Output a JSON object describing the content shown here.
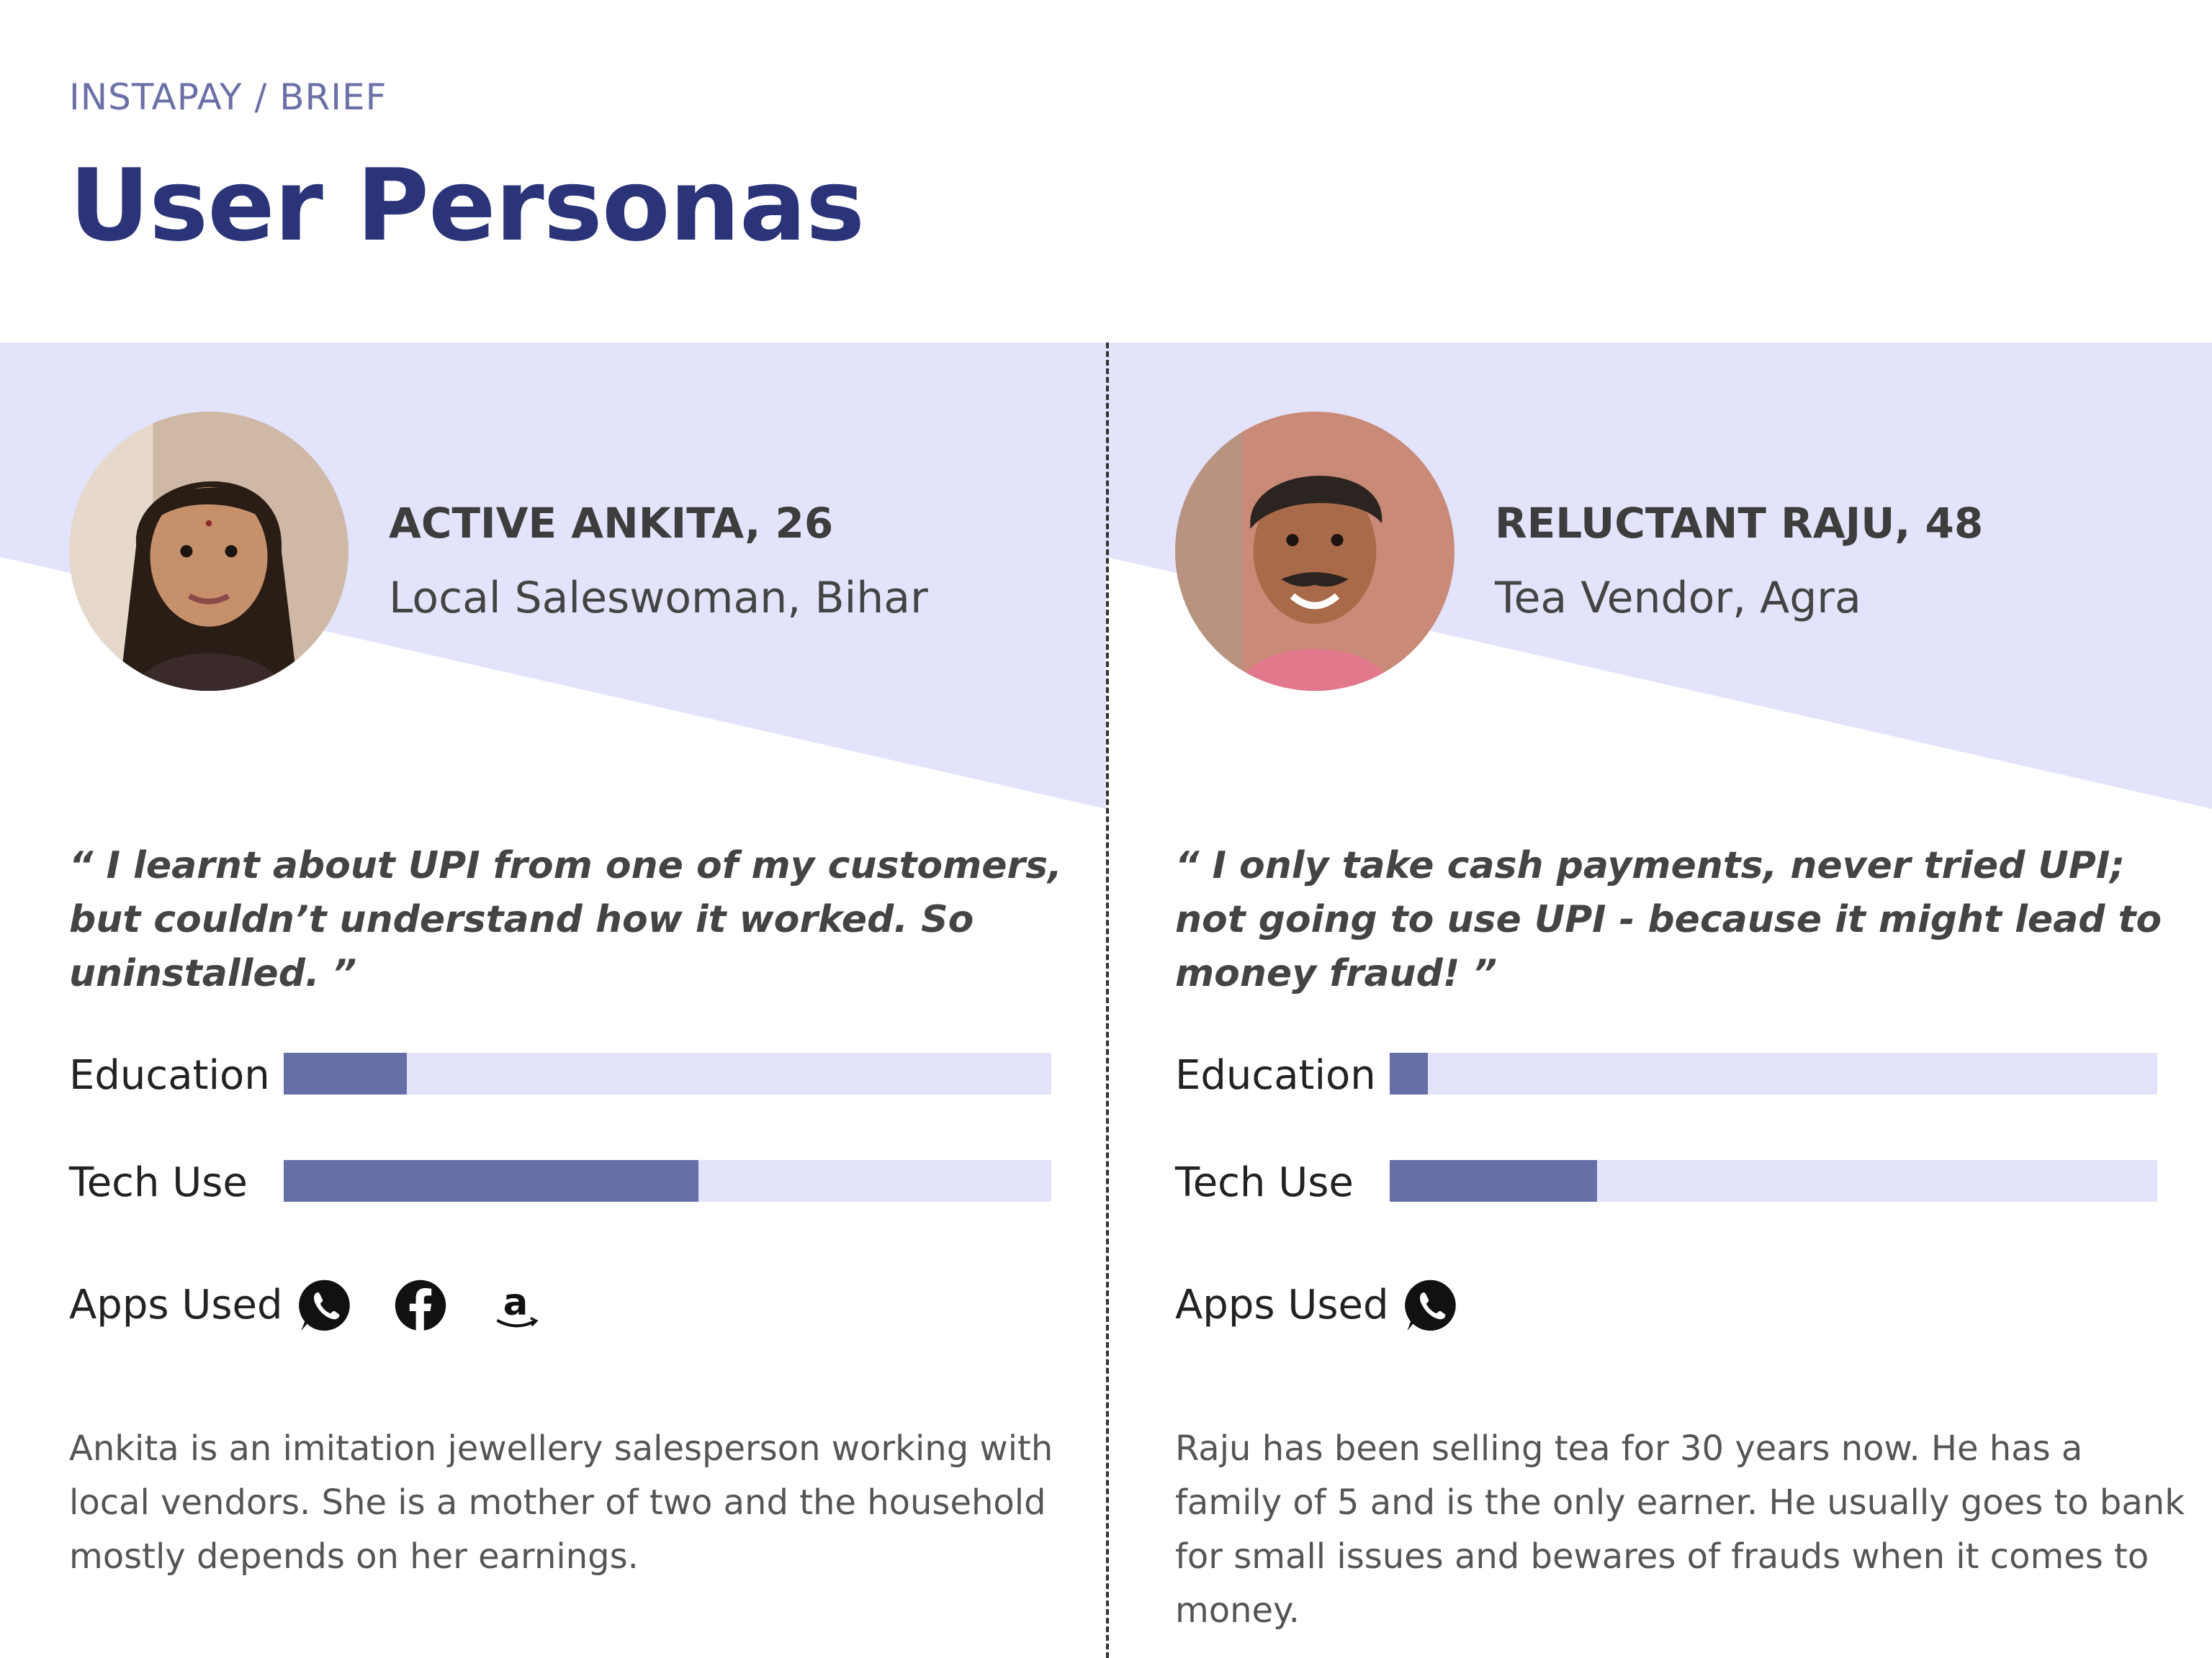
{
  "header": {
    "breadcrumb": "INSTAPAY / BRIEF",
    "title": "User Personas"
  },
  "colors": {
    "title": "#2b3478",
    "band": "#e3e4fc",
    "bar_fill": "#6670a6",
    "bar_track": "#e3e4fc"
  },
  "personas": [
    {
      "name": "ACTIVE ANKITA, 26",
      "role": "Local Saleswoman, Bihar",
      "quote": "“ I learnt about UPI from one of my customers, but couldn’t understand how it worked. So uninstalled. ”",
      "meters": [
        {
          "label": "Education",
          "value": 0.16
        },
        {
          "label": "Tech Use",
          "value": 0.54
        }
      ],
      "apps_label": "Apps Used",
      "apps": [
        "whatsapp-icon",
        "facebook-icon",
        "amazon-icon"
      ],
      "description": "Ankita is an imitation jewellery salesperson working with local vendors. She is a mother of two and the household mostly depends on her earnings."
    },
    {
      "name": "RELUCTANT RAJU, 48",
      "role": "Tea Vendor, Agra",
      "quote": "“ I only take cash payments, never tried UPI; not going to use UPI - because it might lead to money fraud! ”",
      "meters": [
        {
          "label": "Education",
          "value": 0.05
        },
        {
          "label": "Tech Use",
          "value": 0.27
        }
      ],
      "apps_label": "Apps Used",
      "apps": [
        "whatsapp-icon"
      ],
      "description": "Raju has been selling tea for 30 years now. He has a family of 5 and is the only earner. He usually goes to bank for small issues and bewares of frauds when it comes to money."
    }
  ]
}
